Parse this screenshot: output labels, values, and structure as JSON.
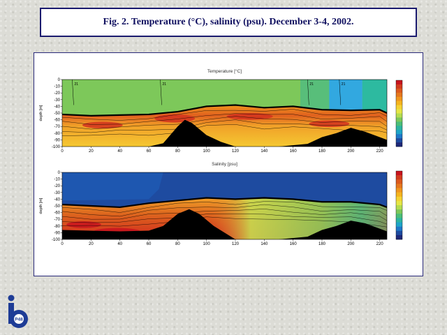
{
  "figure_title": "Fig. 2. Temperature (°C), salinity (psu). December 3-4, 2002.",
  "logo": {
    "icon": "institute-logo-icon",
    "text": "P48"
  },
  "colors": {
    "title_border": "#1a1a6e",
    "panel_border": "#2a2a7a"
  },
  "chart_data": [
    {
      "type": "heatmap",
      "title": "Temperature [°C]",
      "ylabel": "depth [m]",
      "xlabel": "",
      "x_ticks": [
        0,
        20,
        40,
        60,
        80,
        100,
        120,
        140,
        160,
        180,
        200,
        220
      ],
      "y_ticks": [
        0,
        -10,
        -20,
        -30,
        -40,
        -50,
        -60,
        -70,
        -80,
        -90,
        -100
      ],
      "xlim": [
        0,
        225
      ],
      "ylim": [
        -100,
        0
      ],
      "grid": false,
      "legend": "right colorbar",
      "colorbar": [
        "#c8141e",
        "#d23c1e",
        "#dc5a1e",
        "#e6781e",
        "#f0961e",
        "#f5b41e",
        "#f5d232",
        "#e6e646",
        "#b4dc50",
        "#7dc85a",
        "#4bbe78",
        "#2db4a0",
        "#1ea5c8",
        "#1e78c8",
        "#1e4ba0",
        "#1e2878"
      ],
      "surface_contours": [
        {
          "x": 7,
          "label": "21"
        },
        {
          "x": 68,
          "label": "21"
        },
        {
          "x": 170,
          "label": "21"
        },
        {
          "x": 192,
          "label": "21"
        }
      ],
      "seabed_profile": [
        [
          0,
          -100
        ],
        [
          40,
          -100
        ],
        [
          60,
          -100
        ],
        [
          70,
          -95
        ],
        [
          80,
          -70
        ],
        [
          85,
          -60
        ],
        [
          90,
          -65
        ],
        [
          100,
          -83
        ],
        [
          110,
          -93
        ],
        [
          120,
          -100
        ],
        [
          150,
          -100
        ],
        [
          170,
          -96
        ],
        [
          180,
          -86
        ],
        [
          190,
          -80
        ],
        [
          200,
          -72
        ],
        [
          210,
          -78
        ],
        [
          220,
          -86
        ],
        [
          225,
          -90
        ]
      ],
      "thermocline_depth": [
        [
          0,
          -52
        ],
        [
          20,
          -54
        ],
        [
          40,
          -53
        ],
        [
          60,
          -52
        ],
        [
          80,
          -48
        ],
        [
          100,
          -40
        ],
        [
          120,
          -38
        ],
        [
          140,
          -42
        ],
        [
          160,
          -40
        ],
        [
          180,
          -45
        ],
        [
          200,
          -46
        ],
        [
          220,
          -45
        ],
        [
          225,
          -50
        ]
      ]
    },
    {
      "type": "heatmap",
      "title": "Salinity [psu]",
      "ylabel": "depth [m]",
      "xlabel": "",
      "x_ticks": [
        0,
        20,
        40,
        60,
        80,
        100,
        120,
        140,
        160,
        180,
        200,
        220
      ],
      "y_ticks": [
        0,
        -10,
        -20,
        -30,
        -40,
        -50,
        -60,
        -70,
        -80,
        -90,
        -100
      ],
      "xlim": [
        0,
        225
      ],
      "ylim": [
        -100,
        0
      ],
      "grid": false,
      "legend": "right colorbar",
      "colorbar": [
        "#c8141e",
        "#d23c1e",
        "#dc5a1e",
        "#e6781e",
        "#f0961e",
        "#f5b41e",
        "#f5d232",
        "#e6e646",
        "#b4dc50",
        "#7dc85a",
        "#4bbe78",
        "#2db4a0",
        "#1ea5c8",
        "#1e78c8",
        "#1e4ba0",
        "#1e2878"
      ],
      "seabed_profile": [
        [
          0,
          -86
        ],
        [
          40,
          -88
        ],
        [
          60,
          -87
        ],
        [
          70,
          -80
        ],
        [
          80,
          -62
        ],
        [
          88,
          -55
        ],
        [
          95,
          -62
        ],
        [
          105,
          -80
        ],
        [
          120,
          -100
        ],
        [
          150,
          -100
        ],
        [
          170,
          -96
        ],
        [
          180,
          -86
        ],
        [
          190,
          -80
        ],
        [
          200,
          -72
        ],
        [
          210,
          -76
        ],
        [
          220,
          -84
        ],
        [
          225,
          -88
        ]
      ],
      "halocline_depth": [
        [
          0,
          -48
        ],
        [
          20,
          -50
        ],
        [
          40,
          -52
        ],
        [
          60,
          -46
        ],
        [
          80,
          -42
        ],
        [
          100,
          -38
        ],
        [
          120,
          -40
        ],
        [
          140,
          -38
        ],
        [
          160,
          -40
        ],
        [
          180,
          -44
        ],
        [
          200,
          -44
        ],
        [
          220,
          -48
        ],
        [
          225,
          -52
        ]
      ]
    }
  ]
}
